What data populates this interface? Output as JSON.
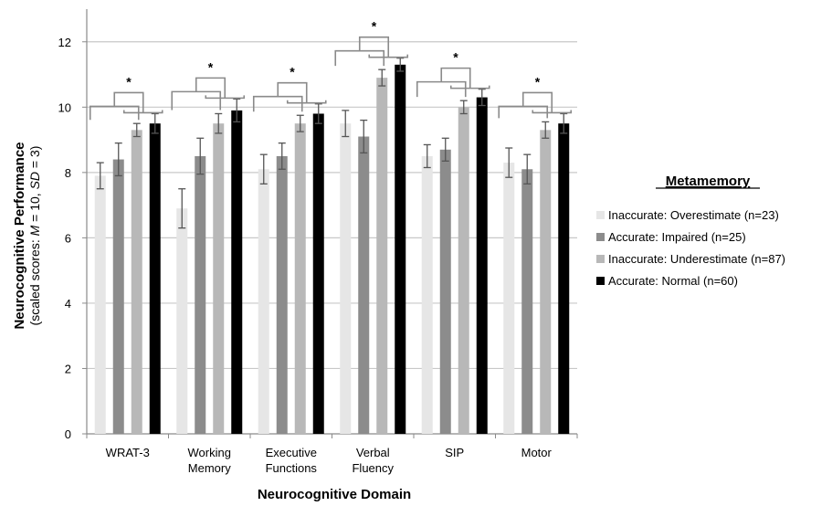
{
  "chart_data": {
    "type": "bar",
    "xlabel": "Neurocognitive Domain",
    "ylabel": {
      "line1": "Neurocognitive Performance",
      "line2_prefix": "(scaled scores: ",
      "M": "M",
      "line2_mid": " = 10, ",
      "SD": "SD",
      "line2_suffix": " = 3)"
    },
    "ylim": [
      0,
      13
    ],
    "yticks": [
      "0",
      "2",
      "4",
      "6",
      "8",
      "10",
      "12"
    ],
    "grid": true,
    "legend_title": "Metamemory",
    "legend_position": "right",
    "categories": [
      [
        "WRAT-3"
      ],
      [
        "Working",
        "Memory"
      ],
      [
        "Executive",
        "Functions"
      ],
      [
        "Verbal",
        "Fluency"
      ],
      [
        "SIP"
      ],
      [
        "Motor"
      ]
    ],
    "series": [
      {
        "name": "Inaccurate: Overestimate (n=23)",
        "color": "#e6e6e6",
        "values": [
          7.9,
          6.9,
          8.1,
          9.5,
          8.5,
          8.3
        ],
        "errors": [
          0.4,
          0.6,
          0.45,
          0.4,
          0.35,
          0.45
        ]
      },
      {
        "name": "Accurate: Impaired (n=25)",
        "color": "#8c8c8c",
        "values": [
          8.4,
          8.5,
          8.5,
          9.1,
          8.7,
          8.1
        ],
        "errors": [
          0.5,
          0.55,
          0.4,
          0.5,
          0.35,
          0.45
        ]
      },
      {
        "name": "Inaccurate: Underestimate (n=87)",
        "color": "#b8b8b8",
        "values": [
          9.3,
          9.5,
          9.5,
          10.9,
          10.0,
          9.3
        ],
        "errors": [
          0.2,
          0.3,
          0.25,
          0.25,
          0.2,
          0.25
        ]
      },
      {
        "name": "Accurate: Normal (n=60)",
        "color": "#000000",
        "values": [
          9.5,
          9.9,
          9.8,
          11.3,
          10.3,
          9.5
        ],
        "errors": [
          0.3,
          0.35,
          0.3,
          0.2,
          0.25,
          0.3
        ]
      }
    ],
    "significance_marker": "*"
  }
}
